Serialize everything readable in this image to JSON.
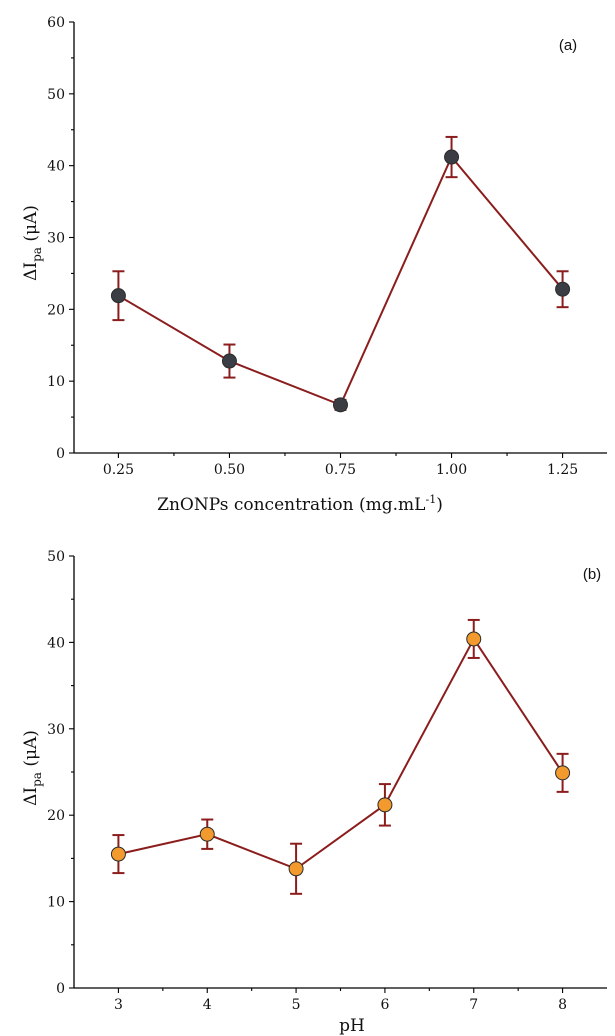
{
  "chart_data": [
    {
      "type": "line",
      "panel_label": "(a)",
      "x": [
        0.25,
        0.5,
        0.75,
        1.0,
        1.25
      ],
      "x_ticks": [
        "0.25",
        "0.50",
        "0.75",
        "1.00",
        "1.25"
      ],
      "xlim": [
        0.15,
        1.35
      ],
      "ylim": [
        0,
        60
      ],
      "y_ticks": [
        0,
        10,
        20,
        30,
        40,
        50,
        60
      ],
      "xlabel": "ZnONPs concentration (mg.mL",
      "xlabel_sup": "-1",
      "xlabel_end": ")",
      "ylabel_main": "ΔI",
      "ylabel_sub": "pa",
      "ylabel_unit": " (μA)",
      "series": [
        {
          "values": [
            21.9,
            12.8,
            6.7,
            41.2,
            22.8
          ],
          "errors": [
            3.4,
            2.3,
            0.7,
            2.8,
            2.5
          ],
          "marker_color": "#3a3d44",
          "line_color": "#8b1d1d"
        }
      ],
      "grid": false
    },
    {
      "type": "line",
      "panel_label": "(b)",
      "x": [
        3,
        4,
        5,
        6,
        7,
        8
      ],
      "x_ticks": [
        "3",
        "4",
        "5",
        "6",
        "7",
        "8"
      ],
      "xlim": [
        2.5,
        8.5
      ],
      "ylim": [
        0,
        50
      ],
      "y_ticks": [
        0,
        10,
        20,
        30,
        40,
        50
      ],
      "xlabel": "pH",
      "xlabel_sup": "",
      "xlabel_end": "",
      "ylabel_main": "ΔI",
      "ylabel_sub": "pa",
      "ylabel_unit": " (μA)",
      "series": [
        {
          "values": [
            15.5,
            17.8,
            13.8,
            21.2,
            40.4,
            24.9
          ],
          "errors": [
            2.2,
            1.7,
            2.9,
            2.4,
            2.2,
            2.2
          ],
          "marker_color": "#f39a2e",
          "line_color": "#8b1d1d"
        }
      ],
      "grid": false
    }
  ]
}
